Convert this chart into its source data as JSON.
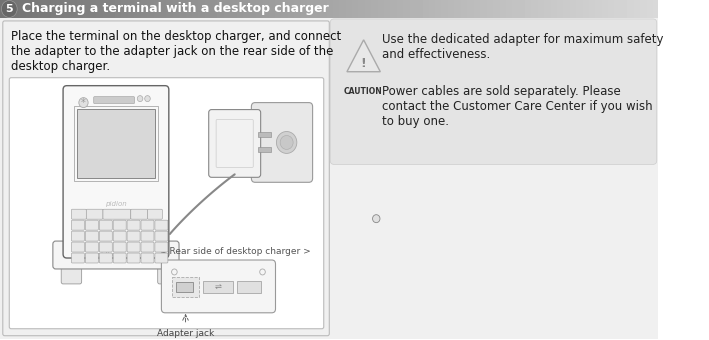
{
  "title_number": "5",
  "title_text": "Charging a terminal with a desktop charger",
  "title_bg_left": "#888888",
  "title_bg_right": "#cccccc",
  "title_text_color": "#ffffff",
  "title_number_bg": "#888888",
  "page_bg": "#e8e8e8",
  "left_panel_bg": "#e0e0e0",
  "right_panel_bg": "#d8d8d8",
  "body_text": "Place the terminal on the desktop charger, and connect\nthe adapter to the adapter jack on the rear side of the\ndesktop charger.",
  "rear_label": "< Rear side of desktop charger >",
  "adapter_jack_label": "Adapter jack",
  "caution_line1": "Use the dedicated adapter for maximum safety\nand effectiveness.",
  "caution_line2": "Power cables are sold separately. Please\ncontact the Customer Care Center if you wish\nto buy one.",
  "caution_word": "CAUTION",
  "body_fontsize": 8.5,
  "title_fontsize": 9.0,
  "small_fontsize": 7.0
}
